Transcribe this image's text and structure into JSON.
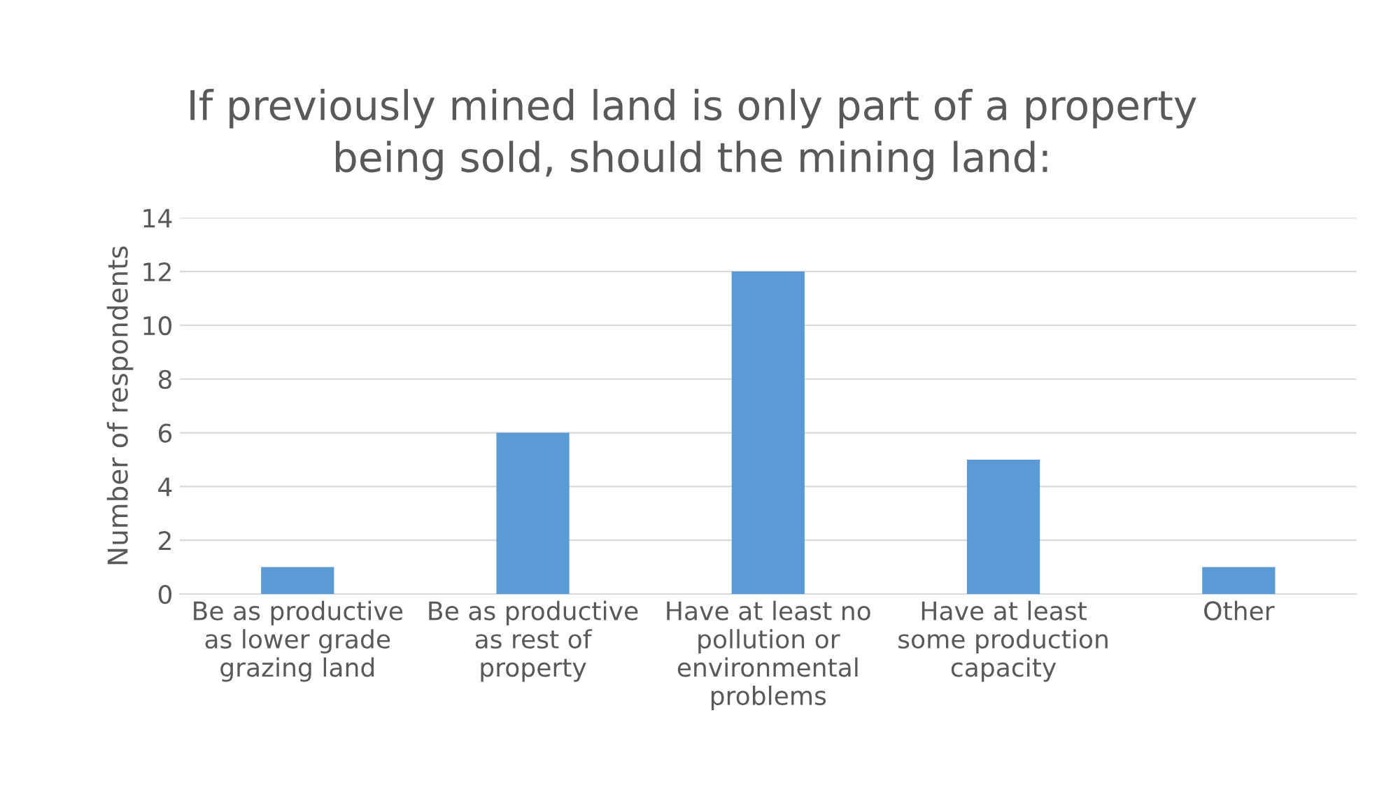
{
  "chart_data": {
    "type": "bar",
    "title": "If previously mined land is only part of a property\nbeing sold, should the mining land:",
    "ylabel": "Number of respondents",
    "categories": [
      "Be as productive\nas lower grade\ngrazing land",
      "Be as productive\nas rest of\nproperty",
      "Have at least no\npollution or\nenvironmental\nproblems",
      "Have at least\nsome production\ncapacity",
      "Other"
    ],
    "values": [
      1,
      6,
      12,
      5,
      1
    ],
    "color": "#5b9bd5",
    "ylim": [
      0,
      14
    ],
    "yticks": [
      0,
      2,
      4,
      6,
      8,
      10,
      12,
      14
    ],
    "grid": "y"
  }
}
